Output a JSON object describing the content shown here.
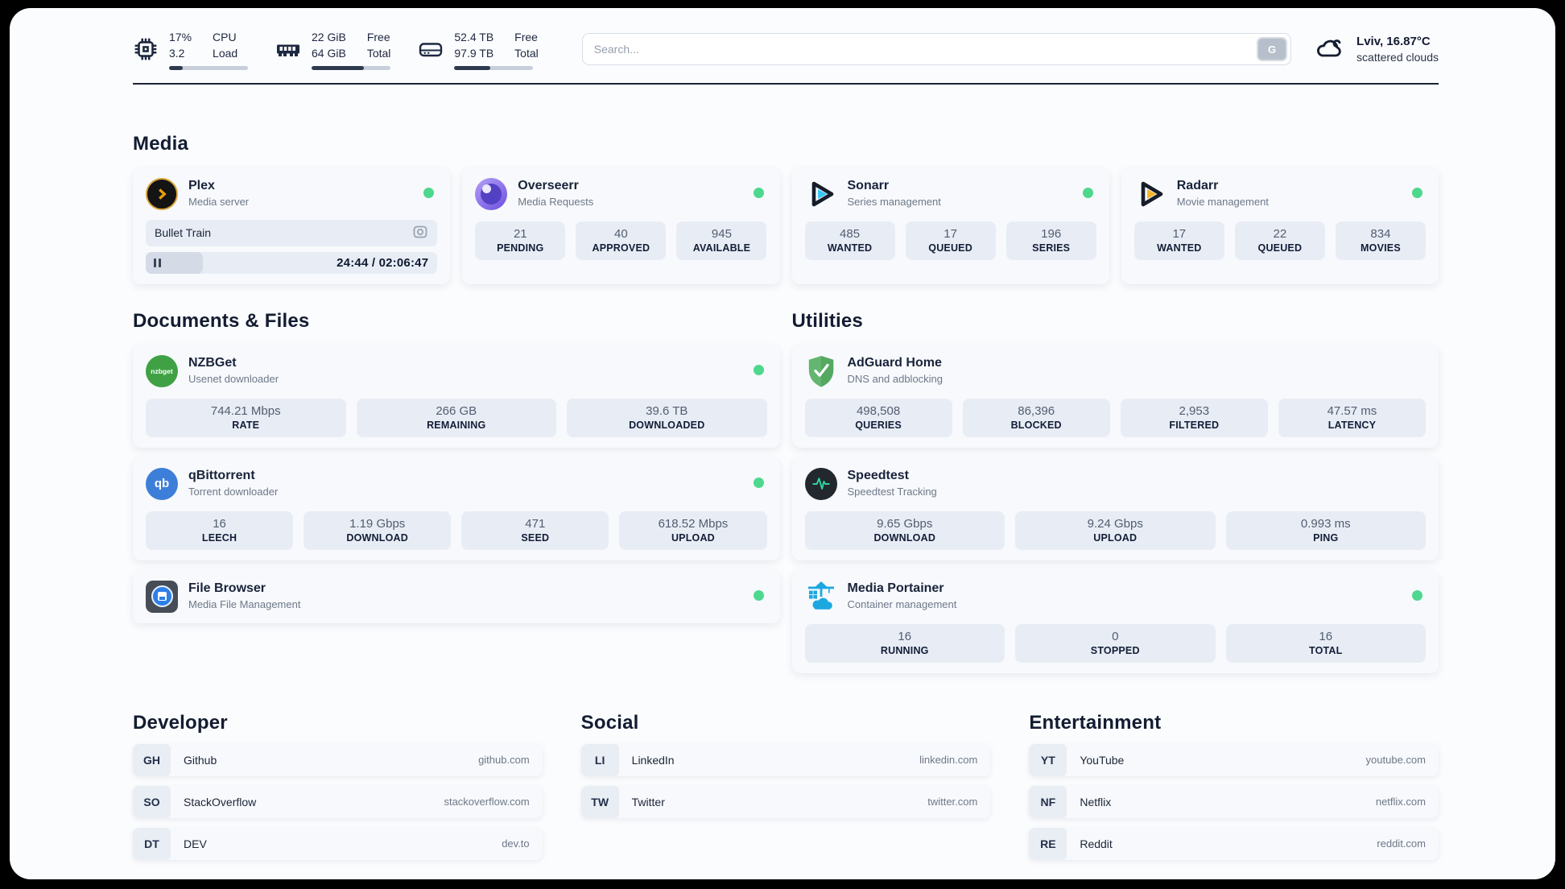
{
  "colors": {
    "status_green": "#4ed88e",
    "progress_dark": "#2e3a4e"
  },
  "header": {
    "hardware": [
      {
        "icon": "cpu-chip-icon",
        "values": [
          "17%",
          "3.2"
        ],
        "labels": [
          "CPU",
          "Load"
        ],
        "progress_pct": 17
      },
      {
        "icon": "ram-icon",
        "values": [
          "22 GiB",
          "64 GiB"
        ],
        "labels": [
          "Free",
          "Total"
        ],
        "progress_pct": 66
      },
      {
        "icon": "disk-icon",
        "values": [
          "52.4 TB",
          "97.9 TB"
        ],
        "labels": [
          "Free",
          "Total"
        ],
        "progress_pct": 46
      }
    ],
    "search": {
      "placeholder": "Search...",
      "button_label": "G"
    },
    "weather": {
      "location_temp": "Lviv, 16.87°C",
      "condition": "scattered clouds"
    }
  },
  "sections": {
    "media": {
      "title": "Media",
      "apps": [
        {
          "name": "Plex",
          "subtitle": "Media server",
          "now_playing": {
            "title": "Bullet Train",
            "time": "24:44 / 02:06:47",
            "progress_pct": 19.5
          }
        },
        {
          "name": "Overseerr",
          "subtitle": "Media Requests",
          "stats": [
            {
              "value": "21",
              "label": "PENDING"
            },
            {
              "value": "40",
              "label": "APPROVED"
            },
            {
              "value": "945",
              "label": "AVAILABLE"
            }
          ]
        },
        {
          "name": "Sonarr",
          "subtitle": "Series management",
          "stats": [
            {
              "value": "485",
              "label": "WANTED"
            },
            {
              "value": "17",
              "label": "QUEUED"
            },
            {
              "value": "196",
              "label": "SERIES"
            }
          ]
        },
        {
          "name": "Radarr",
          "subtitle": "Movie management",
          "stats": [
            {
              "value": "17",
              "label": "WANTED"
            },
            {
              "value": "22",
              "label": "QUEUED"
            },
            {
              "value": "834",
              "label": "MOVIES"
            }
          ]
        }
      ]
    },
    "documents": {
      "title": "Documents & Files",
      "apps": [
        {
          "name": "NZBGet",
          "subtitle": "Usenet downloader",
          "icon_text": "nzbget",
          "stats": [
            {
              "value": "744.21 Mbps",
              "label": "RATE"
            },
            {
              "value": "266 GB",
              "label": "REMAINING"
            },
            {
              "value": "39.6 TB",
              "label": "DOWNLOADED"
            }
          ]
        },
        {
          "name": "qBittorrent",
          "subtitle": "Torrent downloader",
          "icon_text": "qb",
          "stats": [
            {
              "value": "16",
              "label": "LEECH"
            },
            {
              "value": "1.19 Gbps",
              "label": "DOWNLOAD"
            },
            {
              "value": "471",
              "label": "SEED"
            },
            {
              "value": "618.52 Mbps",
              "label": "UPLOAD"
            }
          ]
        },
        {
          "name": "File Browser",
          "subtitle": "Media File Management"
        }
      ]
    },
    "utilities": {
      "title": "Utilities",
      "apps": [
        {
          "name": "AdGuard Home",
          "subtitle": "DNS and adblocking",
          "stats": [
            {
              "value": "498,508",
              "label": "QUERIES"
            },
            {
              "value": "86,396",
              "label": "BLOCKED"
            },
            {
              "value": "2,953",
              "label": "FILTERED"
            },
            {
              "value": "47.57 ms",
              "label": "LATENCY"
            }
          ]
        },
        {
          "name": "Speedtest",
          "subtitle": "Speedtest Tracking",
          "stats": [
            {
              "value": "9.65 Gbps",
              "label": "DOWNLOAD"
            },
            {
              "value": "9.24 Gbps",
              "label": "UPLOAD"
            },
            {
              "value": "0.993 ms",
              "label": "PING"
            }
          ]
        },
        {
          "name": "Media Portainer",
          "subtitle": "Container management",
          "stats": [
            {
              "value": "16",
              "label": "RUNNING"
            },
            {
              "value": "0",
              "label": "STOPPED"
            },
            {
              "value": "16",
              "label": "TOTAL"
            }
          ]
        }
      ]
    },
    "developer": {
      "title": "Developer",
      "links": [
        {
          "tag": "GH",
          "name": "Github",
          "url": "github.com"
        },
        {
          "tag": "SO",
          "name": "StackOverflow",
          "url": "stackoverflow.com"
        },
        {
          "tag": "DT",
          "name": "DEV",
          "url": "dev.to"
        }
      ]
    },
    "social": {
      "title": "Social",
      "links": [
        {
          "tag": "LI",
          "name": "LinkedIn",
          "url": "linkedin.com"
        },
        {
          "tag": "TW",
          "name": "Twitter",
          "url": "twitter.com"
        }
      ]
    },
    "entertainment": {
      "title": "Entertainment",
      "links": [
        {
          "tag": "YT",
          "name": "YouTube",
          "url": "youtube.com"
        },
        {
          "tag": "NF",
          "name": "Netflix",
          "url": "netflix.com"
        },
        {
          "tag": "RE",
          "name": "Reddit",
          "url": "reddit.com"
        }
      ]
    }
  }
}
